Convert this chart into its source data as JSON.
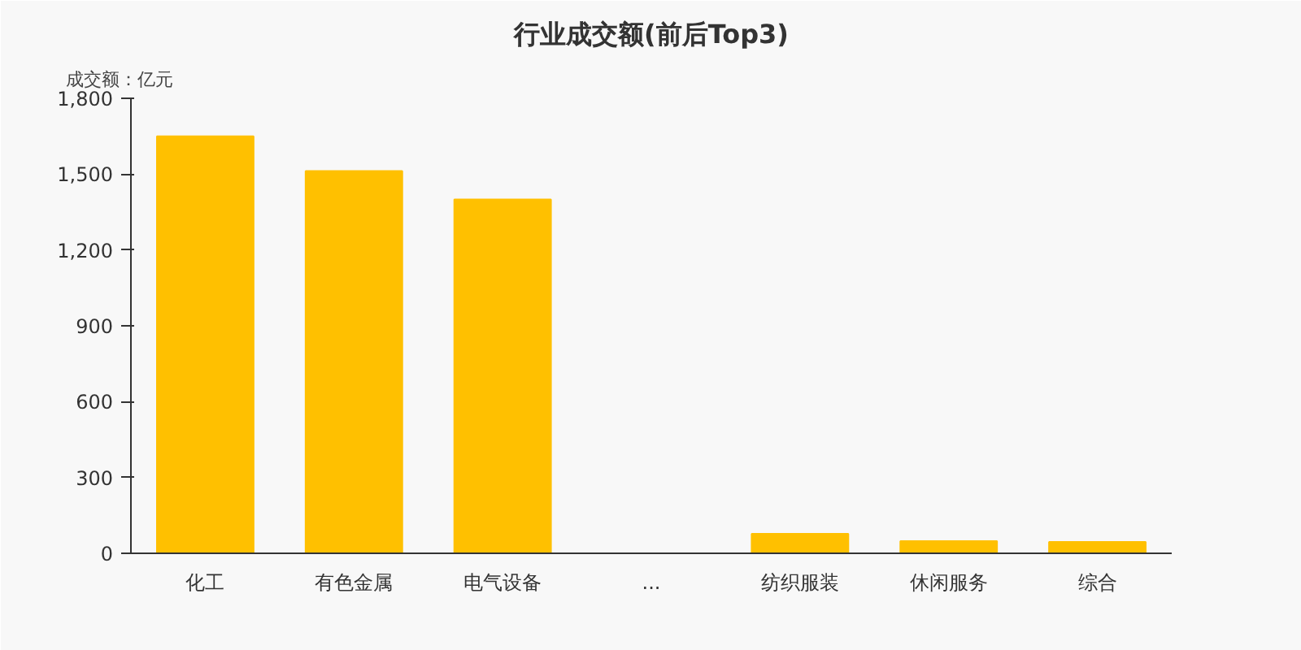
{
  "chart_data": {
    "type": "bar",
    "title": "行业成交额(前后Top3)",
    "ylabel": "成交额：亿元",
    "categories": [
      "化工",
      "有色金属",
      "电气设备",
      "...",
      "纺织服装",
      "休闲服务",
      "综合"
    ],
    "values": [
      1650,
      1512,
      1400,
      null,
      77,
      48,
      45
    ],
    "color": "#ffc000",
    "ylim": [
      0,
      1800
    ],
    "yticks": [
      {
        "value": 0,
        "label": "0"
      },
      {
        "value": 300,
        "label": "300"
      },
      {
        "value": 600,
        "label": "600"
      },
      {
        "value": 900,
        "label": "900"
      },
      {
        "value": 1200,
        "label": "1,200"
      },
      {
        "value": 1500,
        "label": "1,500"
      },
      {
        "value": 1800,
        "label": "1,800"
      }
    ],
    "grid": false
  }
}
